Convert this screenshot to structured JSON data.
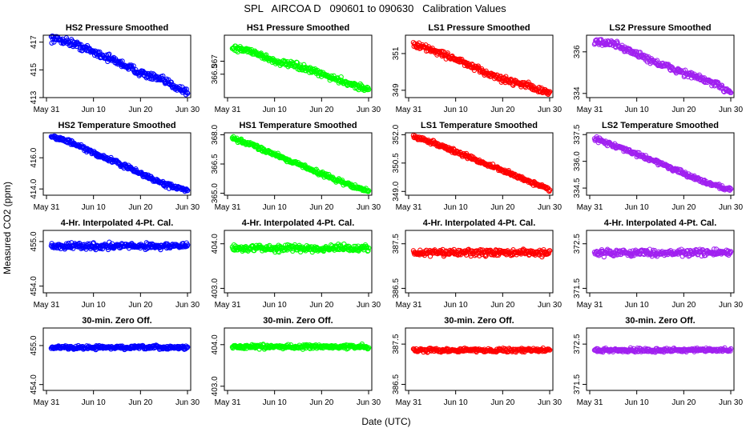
{
  "figure": {
    "title": "SPL   AIRCOA D   090601 to 090630   Calibration Values",
    "xlabel": "Date (UTC)",
    "ylabel": "Measured CO2 (ppm)",
    "x_tick_labels": [
      "May 31",
      "Jun 10",
      "Jun 20",
      "Jun 30"
    ]
  },
  "colors": {
    "HS2": "#0000ff",
    "HS1": "#00ff00",
    "LS1": "#ff0000",
    "LS2": "#a020f0"
  },
  "chart_data": [
    {
      "type": "scatter",
      "title": "HS2 Pressure Smoothed",
      "color": "#0000ff",
      "ylim": [
        413,
        417.5
      ],
      "yticks": [
        413,
        415,
        417
      ],
      "ytick_labels": [
        "413",
        "415",
        "417"
      ],
      "x_range_days": [
        0,
        30
      ],
      "trend": [
        [
          1,
          417.3
        ],
        [
          5,
          417.0
        ],
        [
          10,
          416.3
        ],
        [
          15,
          415.6
        ],
        [
          20,
          414.8
        ],
        [
          25,
          414.2
        ],
        [
          30,
          413.4
        ]
      ],
      "noise": 0.22
    },
    {
      "type": "scatter",
      "title": "HS1 Pressure Smoothed",
      "color": "#00ff00",
      "ylim": [
        365.6,
        368.0
      ],
      "yticks": [
        366.5,
        367
      ],
      "ytick_labels": [
        "366.5",
        "367"
      ],
      "x_range_days": [
        0,
        30
      ],
      "trend": [
        [
          1,
          367.5
        ],
        [
          5,
          367.4
        ],
        [
          10,
          367.0
        ],
        [
          15,
          366.8
        ],
        [
          20,
          366.5
        ],
        [
          25,
          366.2
        ],
        [
          30,
          365.9
        ]
      ],
      "noise": 0.1
    },
    {
      "type": "scatter",
      "title": "LS1 Pressure Smoothed",
      "color": "#ff0000",
      "ylim": [
        348.6,
        352.0
      ],
      "yticks": [
        349,
        351
      ],
      "ytick_labels": [
        "349",
        "351"
      ],
      "x_range_days": [
        0,
        30
      ],
      "trend": [
        [
          1,
          351.5
        ],
        [
          5,
          351.2
        ],
        [
          10,
          350.7
        ],
        [
          15,
          350.1
        ],
        [
          20,
          349.6
        ],
        [
          25,
          349.3
        ],
        [
          30,
          348.8
        ]
      ],
      "noise": 0.14
    },
    {
      "type": "scatter",
      "title": "LS2 Pressure Smoothed",
      "color": "#a020f0",
      "ylim": [
        333.8,
        336.8
      ],
      "yticks": [
        334,
        336
      ],
      "ytick_labels": [
        "334",
        "336"
      ],
      "x_range_days": [
        0,
        30
      ],
      "trend": [
        [
          1,
          336.5
        ],
        [
          5,
          336.4
        ],
        [
          10,
          335.9
        ],
        [
          15,
          335.4
        ],
        [
          20,
          335.0
        ],
        [
          25,
          334.6
        ],
        [
          30,
          334.1
        ]
      ],
      "noise": 0.14
    },
    {
      "type": "scatter",
      "title": "HS2 Temperature Smoothed",
      "color": "#0000ff",
      "ylim": [
        413.6,
        417.6
      ],
      "yticks": [
        414,
        416
      ],
      "ytick_labels": [
        "414.0",
        "416.0"
      ],
      "x_range_days": [
        0,
        30
      ],
      "trend": [
        [
          1,
          417.4
        ],
        [
          5,
          417.0
        ],
        [
          10,
          416.3
        ],
        [
          15,
          415.7
        ],
        [
          20,
          415.0
        ],
        [
          25,
          414.3
        ],
        [
          30,
          413.9
        ]
      ],
      "noise": 0.12
    },
    {
      "type": "scatter",
      "title": "HS1 Temperature Smoothed",
      "color": "#00ff00",
      "ylim": [
        364.9,
        368.1
      ],
      "yticks": [
        365,
        366.5,
        368
      ],
      "ytick_labels": [
        "365.0",
        "366.5",
        "368.0"
      ],
      "x_range_days": [
        0,
        30
      ],
      "trend": [
        [
          1,
          367.8
        ],
        [
          5,
          367.5
        ],
        [
          10,
          367.0
        ],
        [
          15,
          366.5
        ],
        [
          20,
          366.0
        ],
        [
          25,
          365.5
        ],
        [
          30,
          365.1
        ]
      ],
      "noise": 0.09
    },
    {
      "type": "scatter",
      "title": "LS1 Temperature Smoothed",
      "color": "#ff0000",
      "ylim": [
        348.8,
        352.1
      ],
      "yticks": [
        349,
        350.5,
        352
      ],
      "ytick_labels": [
        "349.0",
        "350.5",
        "352.0"
      ],
      "x_range_days": [
        0,
        30
      ],
      "trend": [
        [
          1,
          351.9
        ],
        [
          5,
          351.6
        ],
        [
          10,
          351.1
        ],
        [
          15,
          350.6
        ],
        [
          20,
          350.1
        ],
        [
          25,
          349.6
        ],
        [
          30,
          349.1
        ]
      ],
      "noise": 0.09
    },
    {
      "type": "scatter",
      "title": "LS2 Temperature Smoothed",
      "color": "#a020f0",
      "ylim": [
        334.1,
        337.6
      ],
      "yticks": [
        334.5,
        336,
        337.5
      ],
      "ytick_labels": [
        "334.5",
        "336.0",
        "337.5"
      ],
      "x_range_days": [
        0,
        30
      ],
      "trend": [
        [
          1,
          337.3
        ],
        [
          5,
          336.9
        ],
        [
          10,
          336.4
        ],
        [
          15,
          335.9
        ],
        [
          20,
          335.3
        ],
        [
          25,
          334.8
        ],
        [
          30,
          334.4
        ]
      ],
      "noise": 0.1
    },
    {
      "type": "scatter",
      "title": "4-Hr. Interpolated 4-Pt. Cal.",
      "color": "#0000ff",
      "ylim": [
        453.85,
        455.25
      ],
      "yticks": [
        454,
        455
      ],
      "ytick_labels": [
        "454.0",
        "455.0"
      ],
      "x_range_days": [
        0,
        30
      ],
      "trend": [
        [
          1,
          454.9
        ],
        [
          30,
          454.9
        ]
      ],
      "noise": 0.06
    },
    {
      "type": "scatter",
      "title": "4-Hr. Interpolated 4-Pt. Cal.",
      "color": "#00ff00",
      "ylim": [
        402.9,
        404.3
      ],
      "yticks": [
        403,
        404
      ],
      "ytick_labels": [
        "403.0",
        "404.0"
      ],
      "x_range_days": [
        0,
        30
      ],
      "trend": [
        [
          1,
          403.9
        ],
        [
          30,
          403.9
        ]
      ],
      "noise": 0.06
    },
    {
      "type": "scatter",
      "title": "4-Hr. Interpolated 4-Pt. Cal.",
      "color": "#ff0000",
      "ylim": [
        386.4,
        387.8
      ],
      "yticks": [
        386.5,
        387.5
      ],
      "ytick_labels": [
        "386.5",
        "387.5"
      ],
      "x_range_days": [
        0,
        30
      ],
      "trend": [
        [
          1,
          387.3
        ],
        [
          30,
          387.3
        ]
      ],
      "noise": 0.06
    },
    {
      "type": "scatter",
      "title": "4-Hr. Interpolated 4-Pt. Cal.",
      "color": "#a020f0",
      "ylim": [
        371.4,
        372.8
      ],
      "yticks": [
        371.5,
        372.5
      ],
      "ytick_labels": [
        "371.5",
        "372.5"
      ],
      "x_range_days": [
        0,
        30
      ],
      "trend": [
        [
          1,
          372.3
        ],
        [
          30,
          372.3
        ]
      ],
      "noise": 0.06
    },
    {
      "type": "scatter",
      "title": "30-min. Zero Off.",
      "color": "#0000ff",
      "ylim": [
        453.85,
        455.45
      ],
      "yticks": [
        454,
        455
      ],
      "ytick_labels": [
        "454.0",
        "455.0"
      ],
      "x_range_days": [
        0,
        30
      ],
      "trend": [
        [
          1,
          454.95
        ],
        [
          30,
          454.95
        ]
      ],
      "noise": 0.04
    },
    {
      "type": "scatter",
      "title": "30-min. Zero Off.",
      "color": "#00ff00",
      "ylim": [
        402.9,
        404.4
      ],
      "yticks": [
        403,
        404
      ],
      "ytick_labels": [
        "403.0",
        "404.0"
      ],
      "x_range_days": [
        0,
        30
      ],
      "trend": [
        [
          1,
          403.95
        ],
        [
          30,
          403.95
        ]
      ],
      "noise": 0.04
    },
    {
      "type": "scatter",
      "title": "30-min. Zero Off.",
      "color": "#ff0000",
      "ylim": [
        386.35,
        387.9
      ],
      "yticks": [
        386.5,
        387.5
      ],
      "ytick_labels": [
        "386.5",
        "387.5"
      ],
      "x_range_days": [
        0,
        30
      ],
      "trend": [
        [
          1,
          387.35
        ],
        [
          30,
          387.35
        ]
      ],
      "noise": 0.04
    },
    {
      "type": "scatter",
      "title": "30-min. Zero Off.",
      "color": "#a020f0",
      "ylim": [
        371.35,
        372.9
      ],
      "yticks": [
        371.5,
        372.5
      ],
      "ytick_labels": [
        "371.5",
        "372.5"
      ],
      "x_range_days": [
        0,
        30
      ],
      "trend": [
        [
          1,
          372.35
        ],
        [
          30,
          372.35
        ]
      ],
      "noise": 0.04
    }
  ]
}
